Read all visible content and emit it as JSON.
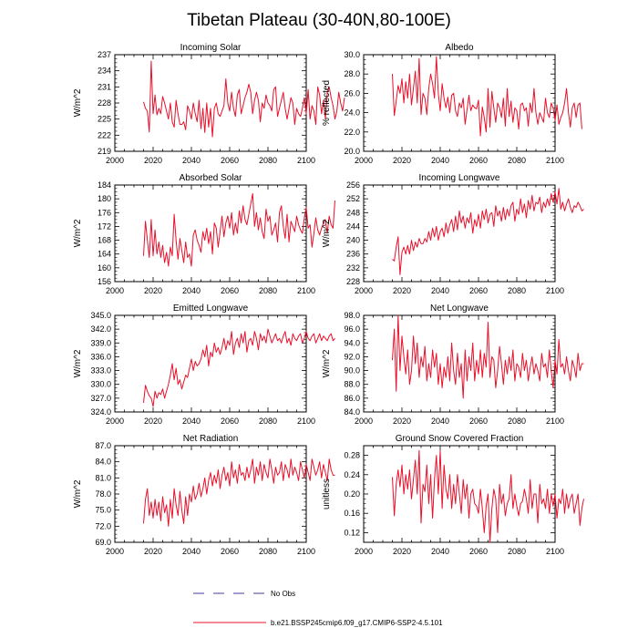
{
  "title": "Tibetan Plateau (30-40N,80-100E)",
  "legend": {
    "obs_label": "No Obs",
    "model_label": "b.e21.BSSP245cmip6.f09_g17.CMIP6-SSP2-4.5.101",
    "obs_color": "#4b3c9a",
    "model_color": "#e8102a"
  },
  "chart_data": [
    {
      "type": "line",
      "title": "Incoming Solar",
      "ylabel": "W/m^2",
      "xlim": [
        2000,
        2100
      ],
      "ylim": [
        219,
        237
      ],
      "xticks": [
        2000,
        2020,
        2040,
        2060,
        2080,
        2100
      ],
      "yticks": [
        219,
        222,
        225,
        228,
        231,
        234,
        237
      ],
      "ytick_labels": [
        "219",
        "222",
        "225",
        "228",
        "231",
        "234",
        "237"
      ],
      "x_start": 2015,
      "values": [
        228.2,
        227.0,
        226.5,
        222.6,
        235.8,
        226.0,
        229.5,
        225.8,
        227.0,
        226.0,
        229.2,
        228.0,
        226.5,
        225.0,
        228.0,
        224.5,
        223.5,
        228.5,
        226.0,
        224.0,
        224.0,
        224.5,
        223.0,
        227.5,
        226.5,
        225.0,
        228.0,
        226.0,
        224.5,
        228.5,
        223.2,
        227.0,
        222.5,
        228.0,
        223.5,
        227.0,
        221.7,
        227.0,
        228.0,
        226.0,
        225.5,
        226.5,
        227.5,
        232.5,
        228.0,
        226.5,
        230.0,
        227.0,
        225.5,
        229.5,
        230.5,
        226.0,
        227.5,
        229.0,
        230.0,
        231.5,
        230.0,
        226.0,
        228.5,
        230.0,
        228.5,
        224.5,
        228.0,
        227.0,
        229.5,
        228.0,
        227.5,
        226.5,
        230.5,
        231.0,
        225.5,
        227.0,
        228.5,
        230.0,
        227.0,
        225.0,
        227.0,
        229.0,
        228.0,
        224.0,
        227.0,
        226.0,
        225.5,
        227.0,
        229.0,
        226.0,
        230.5,
        225.0,
        227.5,
        226.5,
        224.0,
        231.0,
        229.5,
        226.0,
        228.5,
        225.0,
        230.0,
        231.0,
        229.0,
        227.5,
        225.0,
        226.5,
        230.0,
        228.0,
        226.5,
        229.0
      ]
    },
    {
      "type": "line",
      "title": "Albedo",
      "ylabel": "% reflected",
      "xlim": [
        2000,
        2100
      ],
      "ylim": [
        20,
        30
      ],
      "xticks": [
        2000,
        2020,
        2040,
        2060,
        2080,
        2100
      ],
      "yticks": [
        20,
        22,
        24,
        26,
        28,
        30
      ],
      "ytick_labels": [
        "20.0",
        "22.0",
        "24.0",
        "26.0",
        "28.0",
        "30.0"
      ],
      "x_start": 2015,
      "values": [
        28.0,
        23.7,
        25.2,
        26.8,
        26.0,
        27.5,
        25.0,
        27.2,
        25.5,
        28.0,
        24.8,
        26.5,
        28.3,
        25.0,
        29.6,
        23.8,
        26.0,
        25.5,
        23.8,
        26.5,
        28.0,
        27.0,
        25.5,
        29.8,
        26.0,
        24.2,
        27.0,
        25.5,
        24.5,
        25.6,
        24.0,
        25.8,
        26.0,
        24.2,
        23.6,
        25.0,
        24.5,
        25.5,
        22.8,
        24.3,
        25.8,
        24.2,
        24.8,
        24.5,
        24.4,
        25.3,
        21.6,
        24.6,
        23.5,
        22.0,
        26.5,
        22.5,
        26.2,
        24.5,
        23.0,
        25.0,
        24.5,
        23.5,
        25.5,
        22.6,
        26.5,
        23.6,
        25.2,
        23.0,
        24.5,
        24.2,
        22.3,
        24.8,
        25.0,
        24.2,
        24.5,
        22.6,
        25.0,
        24.0,
        26.5,
        24.0,
        22.8,
        24.0,
        23.5,
        23.0,
        25.5,
        24.0,
        23.5,
        25.0,
        24.5,
        23.2,
        24.8,
        22.8,
        23.5,
        24.0,
        25.0,
        26.5,
        24.0,
        22.5,
        24.5,
        25.0,
        23.5,
        24.8,
        25.0,
        22.3
      ]
    },
    {
      "type": "line",
      "title": "Absorbed Solar",
      "ylabel": "W/m^2",
      "xlim": [
        2000,
        2100
      ],
      "ylim": [
        156,
        184
      ],
      "xticks": [
        2000,
        2020,
        2040,
        2060,
        2080,
        2100
      ],
      "yticks": [
        156,
        160,
        164,
        168,
        172,
        176,
        180,
        184
      ],
      "ytick_labels": [
        "156",
        "160",
        "164",
        "168",
        "172",
        "176",
        "180",
        "184"
      ],
      "x_start": 2015,
      "values": [
        163.5,
        173.5,
        168.0,
        163.0,
        174.0,
        163.5,
        171.0,
        164.0,
        167.5,
        163.0,
        166.5,
        161.5,
        164.5,
        160.5,
        166.0,
        163.5,
        175.5,
        168.0,
        162.5,
        168.5,
        165.0,
        161.5,
        167.5,
        163.0,
        164.0,
        160.5,
        169.5,
        171.0,
        168.0,
        166.5,
        164.5,
        170.5,
        168.0,
        171.5,
        167.0,
        170.5,
        164.0,
        173.0,
        171.5,
        166.0,
        170.5,
        175.0,
        169.0,
        173.0,
        175.0,
        171.5,
        176.0,
        169.5,
        173.0,
        170.0,
        176.5,
        173.0,
        178.0,
        174.0,
        172.5,
        175.5,
        178.5,
        181.5,
        172.0,
        176.0,
        171.0,
        174.5,
        170.5,
        168.5,
        177.0,
        173.5,
        175.0,
        169.5,
        171.0,
        173.0,
        167.5,
        176.0,
        178.0,
        172.0,
        168.5,
        175.5,
        167.5,
        173.5,
        172.0,
        170.5,
        175.0,
        172.5,
        171.0,
        170.0,
        174.5,
        177.5,
        171.5,
        172.5,
        166.0,
        170.0,
        174.5,
        171.0,
        169.5,
        171.5,
        173.0,
        174.0,
        170.0,
        175.0,
        172.5,
        171.5,
        179.5
      ]
    },
    {
      "type": "line",
      "title": "Incoming Longwave",
      "ylabel": "W/m^2",
      "xlim": [
        2000,
        2100
      ],
      "ylim": [
        228,
        256
      ],
      "xticks": [
        2000,
        2020,
        2040,
        2060,
        2080,
        2100
      ],
      "yticks": [
        228,
        232,
        236,
        240,
        244,
        248,
        252,
        256
      ],
      "ytick_labels": [
        "228",
        "232",
        "236",
        "240",
        "244",
        "248",
        "252",
        "256"
      ],
      "x_start": 2015,
      "values": [
        234.5,
        234.0,
        238.0,
        241.0,
        230.0,
        236.5,
        238.0,
        236.0,
        238.5,
        236.0,
        240.0,
        237.0,
        239.5,
        238.0,
        240.5,
        239.0,
        239.0,
        240.5,
        239.5,
        242.5,
        240.0,
        243.5,
        241.0,
        244.0,
        240.0,
        242.5,
        243.5,
        241.0,
        245.0,
        242.0,
        244.5,
        246.0,
        242.5,
        247.0,
        243.0,
        248.5,
        245.0,
        247.0,
        243.5,
        246.5,
        245.0,
        248.0,
        242.0,
        246.0,
        244.0,
        247.5,
        243.5,
        248.5,
        246.0,
        249.0,
        245.0,
        247.5,
        248.0,
        244.0,
        250.0,
        247.0,
        248.5,
        245.5,
        249.5,
        246.0,
        249.0,
        247.0,
        250.0,
        251.0,
        245.5,
        249.0,
        247.5,
        252.0,
        248.0,
        250.5,
        246.5,
        251.5,
        249.0,
        253.0,
        248.5,
        251.0,
        250.5,
        252.5,
        248.0,
        251.0,
        249.5,
        252.0,
        250.0,
        253.5,
        251.0,
        254.0,
        250.5,
        255.0,
        249.0,
        251.0,
        248.5,
        250.5,
        252.0,
        249.5,
        248.0,
        250.0,
        249.5,
        251.0,
        250.0,
        248.5,
        249.0
      ]
    },
    {
      "type": "line",
      "title": "Emitted Longwave",
      "ylabel": "W/m^2",
      "xlim": [
        2000,
        2100
      ],
      "ylim": [
        324,
        345
      ],
      "xticks": [
        2000,
        2020,
        2040,
        2060,
        2080,
        2100
      ],
      "yticks": [
        324,
        327,
        330,
        333,
        336,
        339,
        342,
        345
      ],
      "ytick_labels": [
        "324.0",
        "327.0",
        "330.0",
        "333.0",
        "336.0",
        "339.0",
        "342.0",
        "345.0"
      ],
      "x_start": 2015,
      "values": [
        326.0,
        329.8,
        328.5,
        327.5,
        327.0,
        325.2,
        328.5,
        327.0,
        328.2,
        327.8,
        329.0,
        327.0,
        328.5,
        330.0,
        332.0,
        334.5,
        331.0,
        333.5,
        330.0,
        331.0,
        329.0,
        330.5,
        332.0,
        331.5,
        333.5,
        335.5,
        333.0,
        335.0,
        334.0,
        334.5,
        335.5,
        337.5,
        336.0,
        338.5,
        334.0,
        337.0,
        336.0,
        339.0,
        337.0,
        338.0,
        336.5,
        338.0,
        340.0,
        337.5,
        339.5,
        338.5,
        341.5,
        336.5,
        339.0,
        340.0,
        338.0,
        341.0,
        339.0,
        341.5,
        337.0,
        339.5,
        340.0,
        338.5,
        341.5,
        340.0,
        337.5,
        341.0,
        339.5,
        340.5,
        339.0,
        342.0,
        340.5,
        339.0,
        340.0,
        341.0,
        339.5,
        340.0,
        339.0,
        340.5,
        341.5,
        339.0,
        340.0,
        338.5,
        341.0,
        340.0,
        339.5,
        340.5,
        341.0,
        339.0,
        340.0,
        341.5,
        340.0,
        339.5,
        340.5,
        341.0,
        339.0,
        340.0,
        341.0,
        339.5,
        340.5,
        340.0,
        339.5,
        340.5,
        341.0,
        339.5,
        340.0
      ]
    },
    {
      "type": "line",
      "title": "Net Longwave",
      "ylabel": "W/m^2",
      "xlim": [
        2000,
        2100
      ],
      "ylim": [
        84,
        98
      ],
      "xticks": [
        2000,
        2020,
        2040,
        2060,
        2080,
        2100
      ],
      "yticks": [
        84,
        86,
        88,
        90,
        92,
        94,
        96,
        98
      ],
      "ytick_labels": [
        "84.0",
        "86.0",
        "88.0",
        "90.0",
        "92.0",
        "94.0",
        "96.0",
        "98.0"
      ],
      "x_start": 2015,
      "values": [
        91.5,
        96.0,
        87.0,
        98.0,
        90.0,
        95.0,
        92.0,
        89.5,
        93.0,
        88.0,
        90.0,
        95.0,
        91.0,
        94.0,
        89.0,
        92.0,
        90.5,
        93.5,
        88.5,
        91.0,
        89.0,
        93.0,
        90.5,
        92.5,
        88.0,
        91.0,
        87.5,
        90.5,
        89.0,
        92.0,
        88.5,
        94.0,
        90.0,
        88.0,
        92.5,
        89.0,
        91.0,
        86.0,
        93.0,
        88.5,
        92.0,
        90.0,
        94.0,
        88.5,
        91.5,
        89.5,
        93.0,
        89.0,
        92.5,
        90.5,
        97.0,
        89.0,
        92.0,
        91.5,
        87.5,
        90.0,
        93.5,
        91.0,
        88.0,
        91.5,
        89.5,
        92.0,
        90.0,
        93.0,
        88.5,
        91.0,
        90.5,
        89.0,
        92.5,
        90.0,
        91.5,
        88.5,
        90.5,
        92.0,
        89.5,
        91.0,
        90.0,
        88.5,
        92.5,
        90.5,
        91.0,
        89.0,
        93.0,
        90.0,
        87.5,
        91.5,
        89.5,
        94.5,
        90.5,
        91.0,
        89.5,
        92.0,
        90.0,
        88.5,
        91.5,
        90.5,
        89.0,
        92.5,
        90.0,
        91.0,
        91.0
      ]
    },
    {
      "type": "line",
      "title": "Net Radiation",
      "ylabel": "W/m^2",
      "xlim": [
        2000,
        2100
      ],
      "ylim": [
        69,
        87
      ],
      "xticks": [
        2000,
        2020,
        2040,
        2060,
        2080,
        2100
      ],
      "yticks": [
        69,
        72,
        75,
        78,
        81,
        84,
        87
      ],
      "ytick_labels": [
        "69.0",
        "72.0",
        "75.0",
        "78.0",
        "81.0",
        "84.0",
        "87.0"
      ],
      "x_start": 2015,
      "values": [
        72.5,
        77.0,
        79.0,
        74.0,
        76.5,
        73.5,
        77.0,
        74.0,
        76.5,
        73.0,
        77.5,
        74.5,
        76.0,
        72.0,
        77.0,
        73.5,
        79.0,
        76.0,
        74.0,
        78.5,
        75.0,
        72.5,
        77.5,
        74.0,
        78.0,
        76.5,
        79.5,
        77.0,
        78.0,
        80.0,
        77.5,
        79.0,
        81.0,
        78.0,
        80.5,
        82.0,
        79.5,
        81.5,
        80.0,
        82.5,
        79.0,
        81.5,
        83.0,
        80.5,
        82.0,
        79.5,
        84.0,
        81.0,
        82.5,
        80.0,
        83.5,
        81.5,
        82.0,
        80.5,
        83.0,
        81.0,
        82.5,
        84.5,
        80.0,
        83.0,
        81.5,
        84.0,
        80.5,
        83.5,
        82.0,
        81.0,
        84.5,
        82.5,
        80.0,
        83.0,
        81.5,
        82.0,
        84.0,
        80.5,
        83.5,
        82.5,
        81.0,
        84.5,
        81.5,
        83.0,
        82.0,
        80.5,
        84.0,
        82.5,
        81.0,
        83.5,
        82.0,
        80.5,
        84.5,
        83.0,
        81.5,
        82.5,
        84.0,
        81.0,
        83.5,
        82.0,
        80.5,
        84.5,
        82.5,
        81.5,
        81.5
      ]
    },
    {
      "type": "line",
      "title": "Ground Snow Covered Fraction",
      "ylabel": "unitless",
      "xlim": [
        2000,
        2100
      ],
      "ylim": [
        0.1,
        0.3
      ],
      "xticks": [
        2000,
        2020,
        2040,
        2060,
        2080,
        2100
      ],
      "yticks": [
        0.12,
        0.16,
        0.2,
        0.24,
        0.28
      ],
      "ytick_labels": [
        "0.12",
        "0.16",
        "0.20",
        "0.24",
        "0.28"
      ],
      "x_start": 2015,
      "values": [
        0.235,
        0.155,
        0.22,
        0.25,
        0.215,
        0.26,
        0.2,
        0.24,
        0.21,
        0.25,
        0.19,
        0.23,
        0.27,
        0.2,
        0.29,
        0.14,
        0.22,
        0.205,
        0.26,
        0.18,
        0.24,
        0.15,
        0.23,
        0.28,
        0.2,
        0.29,
        0.17,
        0.26,
        0.21,
        0.19,
        0.24,
        0.17,
        0.22,
        0.18,
        0.24,
        0.2,
        0.16,
        0.23,
        0.19,
        0.22,
        0.15,
        0.2,
        0.21,
        0.18,
        0.175,
        0.16,
        0.21,
        0.17,
        0.12,
        0.175,
        0.2,
        0.1,
        0.17,
        0.21,
        0.19,
        0.12,
        0.22,
        0.18,
        0.2,
        0.155,
        0.18,
        0.19,
        0.24,
        0.17,
        0.2,
        0.175,
        0.155,
        0.18,
        0.185,
        0.21,
        0.19,
        0.16,
        0.23,
        0.17,
        0.2,
        0.2,
        0.14,
        0.22,
        0.18,
        0.19,
        0.17,
        0.21,
        0.16,
        0.2,
        0.175,
        0.2,
        0.15,
        0.19,
        0.18,
        0.21,
        0.16,
        0.2,
        0.17,
        0.19,
        0.2,
        0.16,
        0.18,
        0.2,
        0.135,
        0.17,
        0.19
      ]
    }
  ]
}
